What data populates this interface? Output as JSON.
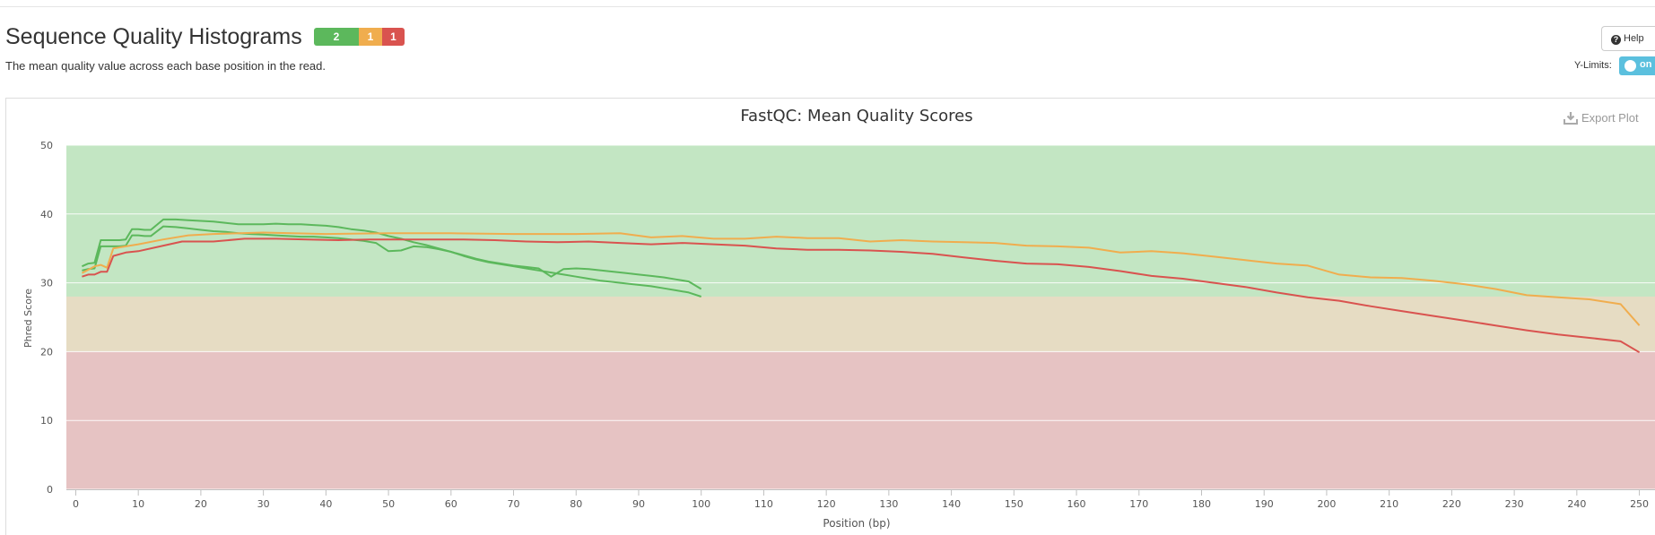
{
  "page": {
    "title": "Sequence Quality Histograms",
    "badges": {
      "pass": "2",
      "warn": "1",
      "fail": "1"
    },
    "subtitle": "The mean quality value across each base position in the read.",
    "help_label": "Help",
    "ylimits_label": "Y-Limits:",
    "ylimits_toggle": "on",
    "export_label": "Export Plot"
  },
  "colors": {
    "pass": "#5cb85c",
    "warn": "#f0ad4e",
    "fail": "#d9534f",
    "zone_good": "#c3e6c3",
    "zone_warn": "#e6dcc3",
    "zone_bad": "#e6c3c3",
    "toggle": "#5bc0de"
  },
  "chart_data": {
    "type": "line",
    "title": "FastQC: Mean Quality Scores",
    "xlabel": "Position (bp)",
    "ylabel": "Phred Score",
    "xlim": [
      -1.5,
      252.5
    ],
    "ylim": [
      0,
      50
    ],
    "xticks": [
      0,
      10,
      20,
      30,
      40,
      50,
      60,
      70,
      80,
      90,
      100,
      110,
      120,
      130,
      140,
      150,
      160,
      170,
      180,
      190,
      200,
      210,
      220,
      230,
      240,
      250
    ],
    "yticks": [
      0,
      10,
      20,
      30,
      40,
      50
    ],
    "zones": [
      {
        "from": 28,
        "to": 50,
        "color": "#c3e6c3"
      },
      {
        "from": 20,
        "to": 28,
        "color": "#e6dcc3"
      },
      {
        "from": 0,
        "to": 20,
        "color": "#e6c3c3"
      }
    ],
    "grid": true,
    "legend": "none",
    "series": [
      {
        "color": "#5cb85c",
        "points": [
          [
            1,
            32.4
          ],
          [
            2,
            32.8
          ],
          [
            3,
            32.9
          ],
          [
            4,
            36.2
          ],
          [
            5,
            36.2
          ],
          [
            6,
            36.2
          ],
          [
            7,
            36.2
          ],
          [
            8,
            36.3
          ],
          [
            9,
            37.8
          ],
          [
            10,
            37.8
          ],
          [
            11,
            37.7
          ],
          [
            12,
            37.7
          ],
          [
            14,
            39.2
          ],
          [
            16,
            39.2
          ],
          [
            18,
            39.1
          ],
          [
            20,
            39.0
          ],
          [
            22,
            38.9
          ],
          [
            24,
            38.7
          ],
          [
            26,
            38.5
          ],
          [
            28,
            38.5
          ],
          [
            30,
            38.5
          ],
          [
            32,
            38.6
          ],
          [
            34,
            38.5
          ],
          [
            36,
            38.5
          ],
          [
            38,
            38.4
          ],
          [
            40,
            38.3
          ],
          [
            42,
            38.1
          ],
          [
            44,
            37.8
          ],
          [
            46,
            37.6
          ],
          [
            48,
            37.3
          ],
          [
            50,
            36.8
          ],
          [
            52,
            36.4
          ],
          [
            54,
            35.9
          ],
          [
            56,
            35.5
          ],
          [
            58,
            35.0
          ],
          [
            60,
            34.5
          ],
          [
            62,
            33.9
          ],
          [
            64,
            33.4
          ],
          [
            66,
            33.0
          ],
          [
            68,
            32.7
          ],
          [
            70,
            32.4
          ],
          [
            72,
            32.1
          ],
          [
            74,
            31.8
          ],
          [
            76,
            31.5
          ],
          [
            78,
            31.2
          ],
          [
            80,
            30.9
          ],
          [
            82,
            30.6
          ],
          [
            84,
            30.3
          ],
          [
            86,
            30.1
          ],
          [
            88,
            29.9
          ],
          [
            90,
            29.7
          ],
          [
            92,
            29.5
          ],
          [
            94,
            29.2
          ],
          [
            96,
            28.9
          ],
          [
            98,
            28.6
          ],
          [
            100,
            28.0
          ]
        ]
      },
      {
        "color": "#5cb85c",
        "points": [
          [
            1,
            31.8
          ],
          [
            2,
            32.0
          ],
          [
            3,
            32.1
          ],
          [
            4,
            35.3
          ],
          [
            5,
            35.3
          ],
          [
            6,
            35.3
          ],
          [
            7,
            35.3
          ],
          [
            8,
            35.4
          ],
          [
            9,
            36.9
          ],
          [
            10,
            36.9
          ],
          [
            11,
            36.8
          ],
          [
            12,
            36.8
          ],
          [
            14,
            38.2
          ],
          [
            16,
            38.1
          ],
          [
            18,
            37.9
          ],
          [
            20,
            37.7
          ],
          [
            22,
            37.5
          ],
          [
            24,
            37.4
          ],
          [
            26,
            37.2
          ],
          [
            28,
            37.1
          ],
          [
            30,
            37.0
          ],
          [
            32,
            36.9
          ],
          [
            34,
            36.8
          ],
          [
            36,
            36.7
          ],
          [
            38,
            36.7
          ],
          [
            40,
            36.6
          ],
          [
            42,
            36.5
          ],
          [
            44,
            36.3
          ],
          [
            46,
            36.1
          ],
          [
            48,
            35.8
          ],
          [
            50,
            34.6
          ],
          [
            52,
            34.7
          ],
          [
            54,
            35.3
          ],
          [
            56,
            35.2
          ],
          [
            58,
            34.9
          ],
          [
            60,
            34.5
          ],
          [
            62,
            34.0
          ],
          [
            64,
            33.5
          ],
          [
            66,
            33.1
          ],
          [
            68,
            32.8
          ],
          [
            70,
            32.5
          ],
          [
            72,
            32.3
          ],
          [
            74,
            32.1
          ],
          [
            76,
            30.9
          ],
          [
            78,
            32.0
          ],
          [
            80,
            32.1
          ],
          [
            82,
            32.0
          ],
          [
            84,
            31.8
          ],
          [
            86,
            31.6
          ],
          [
            88,
            31.4
          ],
          [
            90,
            31.2
          ],
          [
            92,
            31.0
          ],
          [
            94,
            30.8
          ],
          [
            96,
            30.5
          ],
          [
            98,
            30.2
          ],
          [
            100,
            29.1
          ]
        ]
      },
      {
        "color": "#f0ad4e",
        "points": [
          [
            1,
            31.4
          ],
          [
            3,
            32.4
          ],
          [
            4,
            32.6
          ],
          [
            5,
            32.2
          ],
          [
            6,
            35.0
          ],
          [
            8,
            35.3
          ],
          [
            10,
            35.6
          ],
          [
            14,
            36.3
          ],
          [
            18,
            36.9
          ],
          [
            22,
            37.1
          ],
          [
            30,
            37.3
          ],
          [
            40,
            37.1
          ],
          [
            50,
            37.2
          ],
          [
            60,
            37.2
          ],
          [
            70,
            37.1
          ],
          [
            80,
            37.1
          ],
          [
            87,
            37.2
          ],
          [
            92,
            36.6
          ],
          [
            97,
            36.8
          ],
          [
            102,
            36.4
          ],
          [
            107,
            36.4
          ],
          [
            112,
            36.7
          ],
          [
            117,
            36.5
          ],
          [
            122,
            36.5
          ],
          [
            127,
            36.0
          ],
          [
            132,
            36.2
          ],
          [
            137,
            36.0
          ],
          [
            142,
            35.9
          ],
          [
            147,
            35.8
          ],
          [
            152,
            35.4
          ],
          [
            157,
            35.3
          ],
          [
            162,
            35.1
          ],
          [
            167,
            34.4
          ],
          [
            172,
            34.6
          ],
          [
            177,
            34.3
          ],
          [
            182,
            33.8
          ],
          [
            187,
            33.3
          ],
          [
            192,
            32.8
          ],
          [
            197,
            32.5
          ],
          [
            202,
            31.2
          ],
          [
            207,
            30.8
          ],
          [
            212,
            30.7
          ],
          [
            217,
            30.3
          ],
          [
            222,
            29.8
          ],
          [
            227,
            29.1
          ],
          [
            232,
            28.2
          ],
          [
            237,
            27.9
          ],
          [
            242,
            27.6
          ],
          [
            247,
            26.9
          ],
          [
            250,
            23.8
          ]
        ]
      },
      {
        "color": "#d9534f",
        "points": [
          [
            1,
            30.9
          ],
          [
            2,
            31.2
          ],
          [
            3,
            31.2
          ],
          [
            4,
            31.6
          ],
          [
            5,
            31.6
          ],
          [
            6,
            33.9
          ],
          [
            8,
            34.4
          ],
          [
            10,
            34.6
          ],
          [
            14,
            35.4
          ],
          [
            17,
            36.0
          ],
          [
            22,
            36.0
          ],
          [
            27,
            36.4
          ],
          [
            32,
            36.4
          ],
          [
            37,
            36.3
          ],
          [
            42,
            36.2
          ],
          [
            47,
            36.3
          ],
          [
            52,
            36.3
          ],
          [
            57,
            36.3
          ],
          [
            62,
            36.3
          ],
          [
            67,
            36.2
          ],
          [
            72,
            36.0
          ],
          [
            77,
            35.9
          ],
          [
            82,
            36.0
          ],
          [
            87,
            35.8
          ],
          [
            92,
            35.6
          ],
          [
            97,
            35.8
          ],
          [
            102,
            35.6
          ],
          [
            107,
            35.4
          ],
          [
            112,
            35.0
          ],
          [
            117,
            34.8
          ],
          [
            122,
            34.8
          ],
          [
            127,
            34.7
          ],
          [
            132,
            34.5
          ],
          [
            137,
            34.2
          ],
          [
            142,
            33.7
          ],
          [
            147,
            33.2
          ],
          [
            152,
            32.8
          ],
          [
            157,
            32.7
          ],
          [
            162,
            32.3
          ],
          [
            167,
            31.7
          ],
          [
            172,
            31.0
          ],
          [
            177,
            30.6
          ],
          [
            182,
            30.0
          ],
          [
            187,
            29.4
          ],
          [
            192,
            28.6
          ],
          [
            197,
            27.9
          ],
          [
            202,
            27.4
          ],
          [
            207,
            26.6
          ],
          [
            212,
            25.9
          ],
          [
            217,
            25.2
          ],
          [
            222,
            24.5
          ],
          [
            227,
            23.8
          ],
          [
            232,
            23.1
          ],
          [
            237,
            22.5
          ],
          [
            242,
            22.0
          ],
          [
            247,
            21.5
          ],
          [
            250,
            19.9
          ]
        ]
      }
    ]
  }
}
